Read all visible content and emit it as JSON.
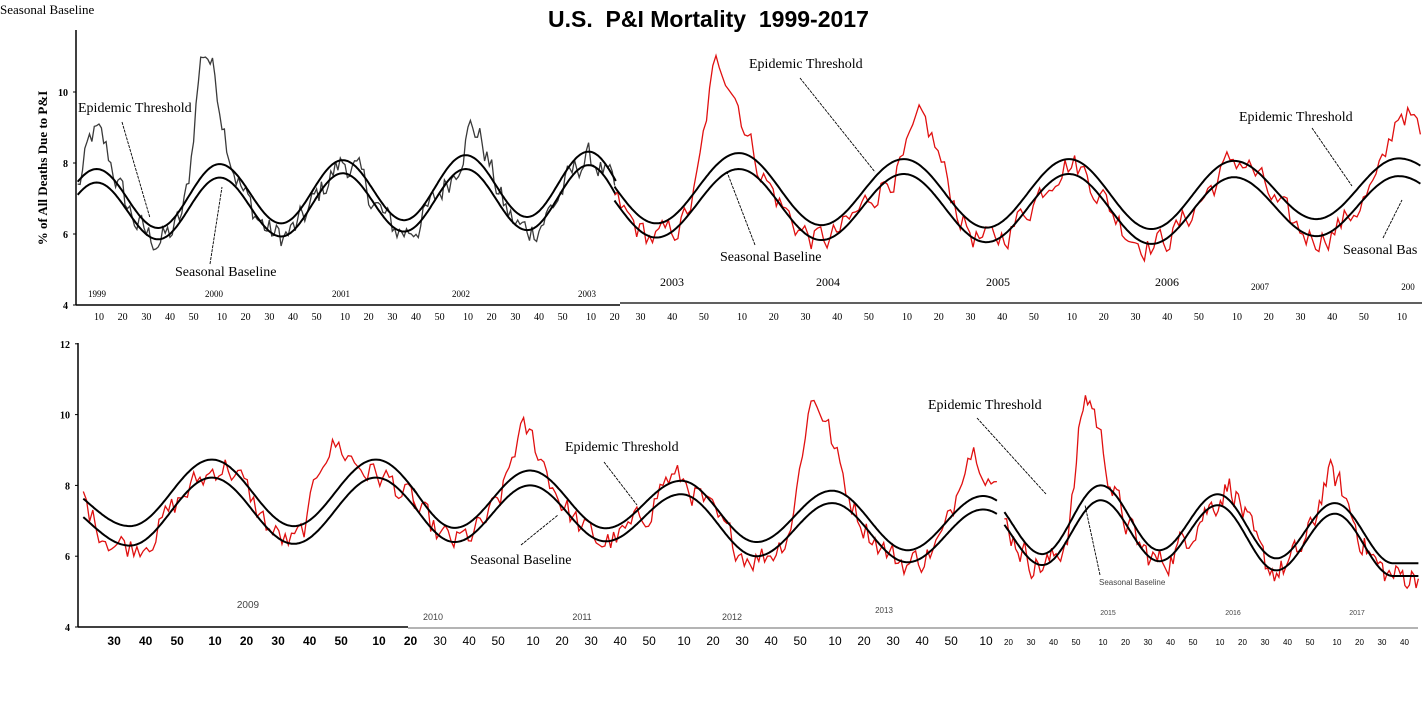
{
  "chart_data": {
    "type": "line",
    "title": "U.S.  P&I Mortality  1999-2017",
    "ylabel": "% of All Deaths Due to P&I",
    "xlabel": "",
    "panels": [
      {
        "ylim": [
          4,
          12
        ],
        "yticks": [
          4,
          6,
          8,
          10
        ],
        "year_labels": [
          "1999",
          "2000",
          "2001",
          "2002",
          "2003",
          "2003",
          "2004",
          "2005",
          "2006",
          "2007",
          "200"
        ]
      },
      {
        "ylim": [
          4,
          12
        ],
        "yticks": [
          4,
          6,
          8,
          10,
          12
        ],
        "year_labels": [
          "2009",
          "2010",
          "2011",
          "2012",
          "2013",
          "2015",
          "2016",
          "2017"
        ]
      }
    ],
    "week_ticks": [
      10,
      20,
      30,
      40,
      50
    ],
    "series": [
      {
        "name": "Epidemic Threshold",
        "color": "#000000",
        "extremes": [
          {
            "year": 1999,
            "peak": 7.83,
            "trough": 6.17
          },
          {
            "year": 2000,
            "peak": 7.97,
            "trough": 6.3
          },
          {
            "year": 2001,
            "peak": 8.08,
            "trough": 6.39
          },
          {
            "year": 2002,
            "peak": 8.22,
            "trough": 6.48
          },
          {
            "year": 2003,
            "peak": 8.32,
            "trough": 6.3
          },
          {
            "year": 2004,
            "peak": 8.28,
            "trough": 6.25
          },
          {
            "year": 2005,
            "peak": 8.11,
            "trough": 6.18
          },
          {
            "year": 2006,
            "peak": 8.11,
            "trough": 6.14
          },
          {
            "year": 2007,
            "peak": 8.06,
            "trough": 6.42
          },
          {
            "year": 2008,
            "peak": 8.13,
            "trough": 6.85
          },
          {
            "year": 2009,
            "peak": 8.73,
            "trough": 6.85
          },
          {
            "year": 2010,
            "peak": 8.73,
            "trough": 6.8
          },
          {
            "year": 2011,
            "peak": 8.42,
            "trough": 6.79
          },
          {
            "year": 2012,
            "peak": 8.13,
            "trough": 6.4
          },
          {
            "year": 2013,
            "peak": 7.85,
            "trough": 6.17
          },
          {
            "year": 2014,
            "peak": 7.7,
            "trough": 6.06
          },
          {
            "year": 2015,
            "peak": 8.0,
            "trough": 6.17
          },
          {
            "year": 2016,
            "peak": 7.75,
            "trough": 5.94
          },
          {
            "year": 2017,
            "peak": 7.5,
            "trough": 5.8
          }
        ]
      },
      {
        "name": "Seasonal Baseline",
        "color": "#000000",
        "extremes": [
          {
            "year": 1999,
            "peak": 7.45,
            "trough": 5.85
          },
          {
            "year": 2000,
            "peak": 7.59,
            "trough": 5.93
          },
          {
            "year": 2001,
            "peak": 7.71,
            "trough": 6.07
          },
          {
            "year": 2002,
            "peak": 7.83,
            "trough": 6.11
          },
          {
            "year": 2003,
            "peak": 7.94,
            "trough": 5.9
          },
          {
            "year": 2004,
            "peak": 7.83,
            "trough": 5.83
          },
          {
            "year": 2005,
            "peak": 7.69,
            "trough": 5.77
          },
          {
            "year": 2006,
            "peak": 7.69,
            "trough": 5.72
          },
          {
            "year": 2007,
            "peak": 7.6,
            "trough": 5.94
          },
          {
            "year": 2008,
            "peak": 7.63,
            "trough": 6.3
          },
          {
            "year": 2009,
            "peak": 8.22,
            "trough": 6.35
          },
          {
            "year": 2010,
            "peak": 8.22,
            "trough": 6.4
          },
          {
            "year": 2011,
            "peak": 8.0,
            "trough": 6.42
          },
          {
            "year": 2012,
            "peak": 7.75,
            "trough": 6.0
          },
          {
            "year": 2013,
            "peak": 7.5,
            "trough": 5.83
          },
          {
            "year": 2014,
            "peak": 7.32,
            "trough": 5.75
          },
          {
            "year": 2015,
            "peak": 7.58,
            "trough": 5.86
          },
          {
            "year": 2016,
            "peak": 7.44,
            "trough": 5.6
          },
          {
            "year": 2017,
            "peak": 7.2,
            "trough": 5.44
          }
        ]
      },
      {
        "name": "% of All Deaths Due to P&I",
        "colors": {
          "1999-2003": "#3a3a3a",
          "2003-2017": "#e01010"
        },
        "season_peaks": [
          {
            "year": 1999,
            "week": 8,
            "value": 8.9
          },
          {
            "year": 2000,
            "week": 2,
            "value": 11.2
          },
          {
            "year": 2001,
            "week": 10,
            "value": 8.1
          },
          {
            "year": 2002,
            "week": 12,
            "value": 9.1
          },
          {
            "year": 2003,
            "week": 8,
            "value": 8.2
          },
          {
            "year": 2004,
            "week": 2,
            "value": 10.8
          },
          {
            "year": 2005,
            "week": 15,
            "value": 9.2
          },
          {
            "year": 2006,
            "week": 8,
            "value": 8.1
          },
          {
            "year": 2007,
            "week": 10,
            "value": 8.2
          },
          {
            "year": 2008,
            "week": 10,
            "value": 9.6
          },
          {
            "year": 2009,
            "week": 14,
            "value": 8.65
          },
          {
            "year": 2009,
            "week": 45,
            "value": 9.1
          },
          {
            "year": 2011,
            "week": 6,
            "value": 9.55
          },
          {
            "year": 2012,
            "week": 4,
            "value": 8.25
          },
          {
            "year": 2013,
            "week": 2,
            "value": 10.46
          },
          {
            "year": 2014,
            "week": 4,
            "value": 9.14
          },
          {
            "year": 2015,
            "week": 2,
            "value": 10.5
          },
          {
            "year": 2016,
            "week": 15,
            "value": 8.06
          },
          {
            "year": 2017,
            "week": 6,
            "value": 8.34
          }
        ]
      }
    ],
    "annotations": [
      "Seasonal Baseline",
      "Epidemic Threshold",
      "Seasonal Baseline",
      "Epidemic Threshold",
      "Seasonal Baseline",
      "Epidemic Threshold",
      "Seasonal Bas",
      "Epidemic Threshold",
      "Seasonal Baseline",
      "Epidemic Threshold",
      "Seasonal Baseline"
    ],
    "grid": false,
    "legend": "none"
  }
}
